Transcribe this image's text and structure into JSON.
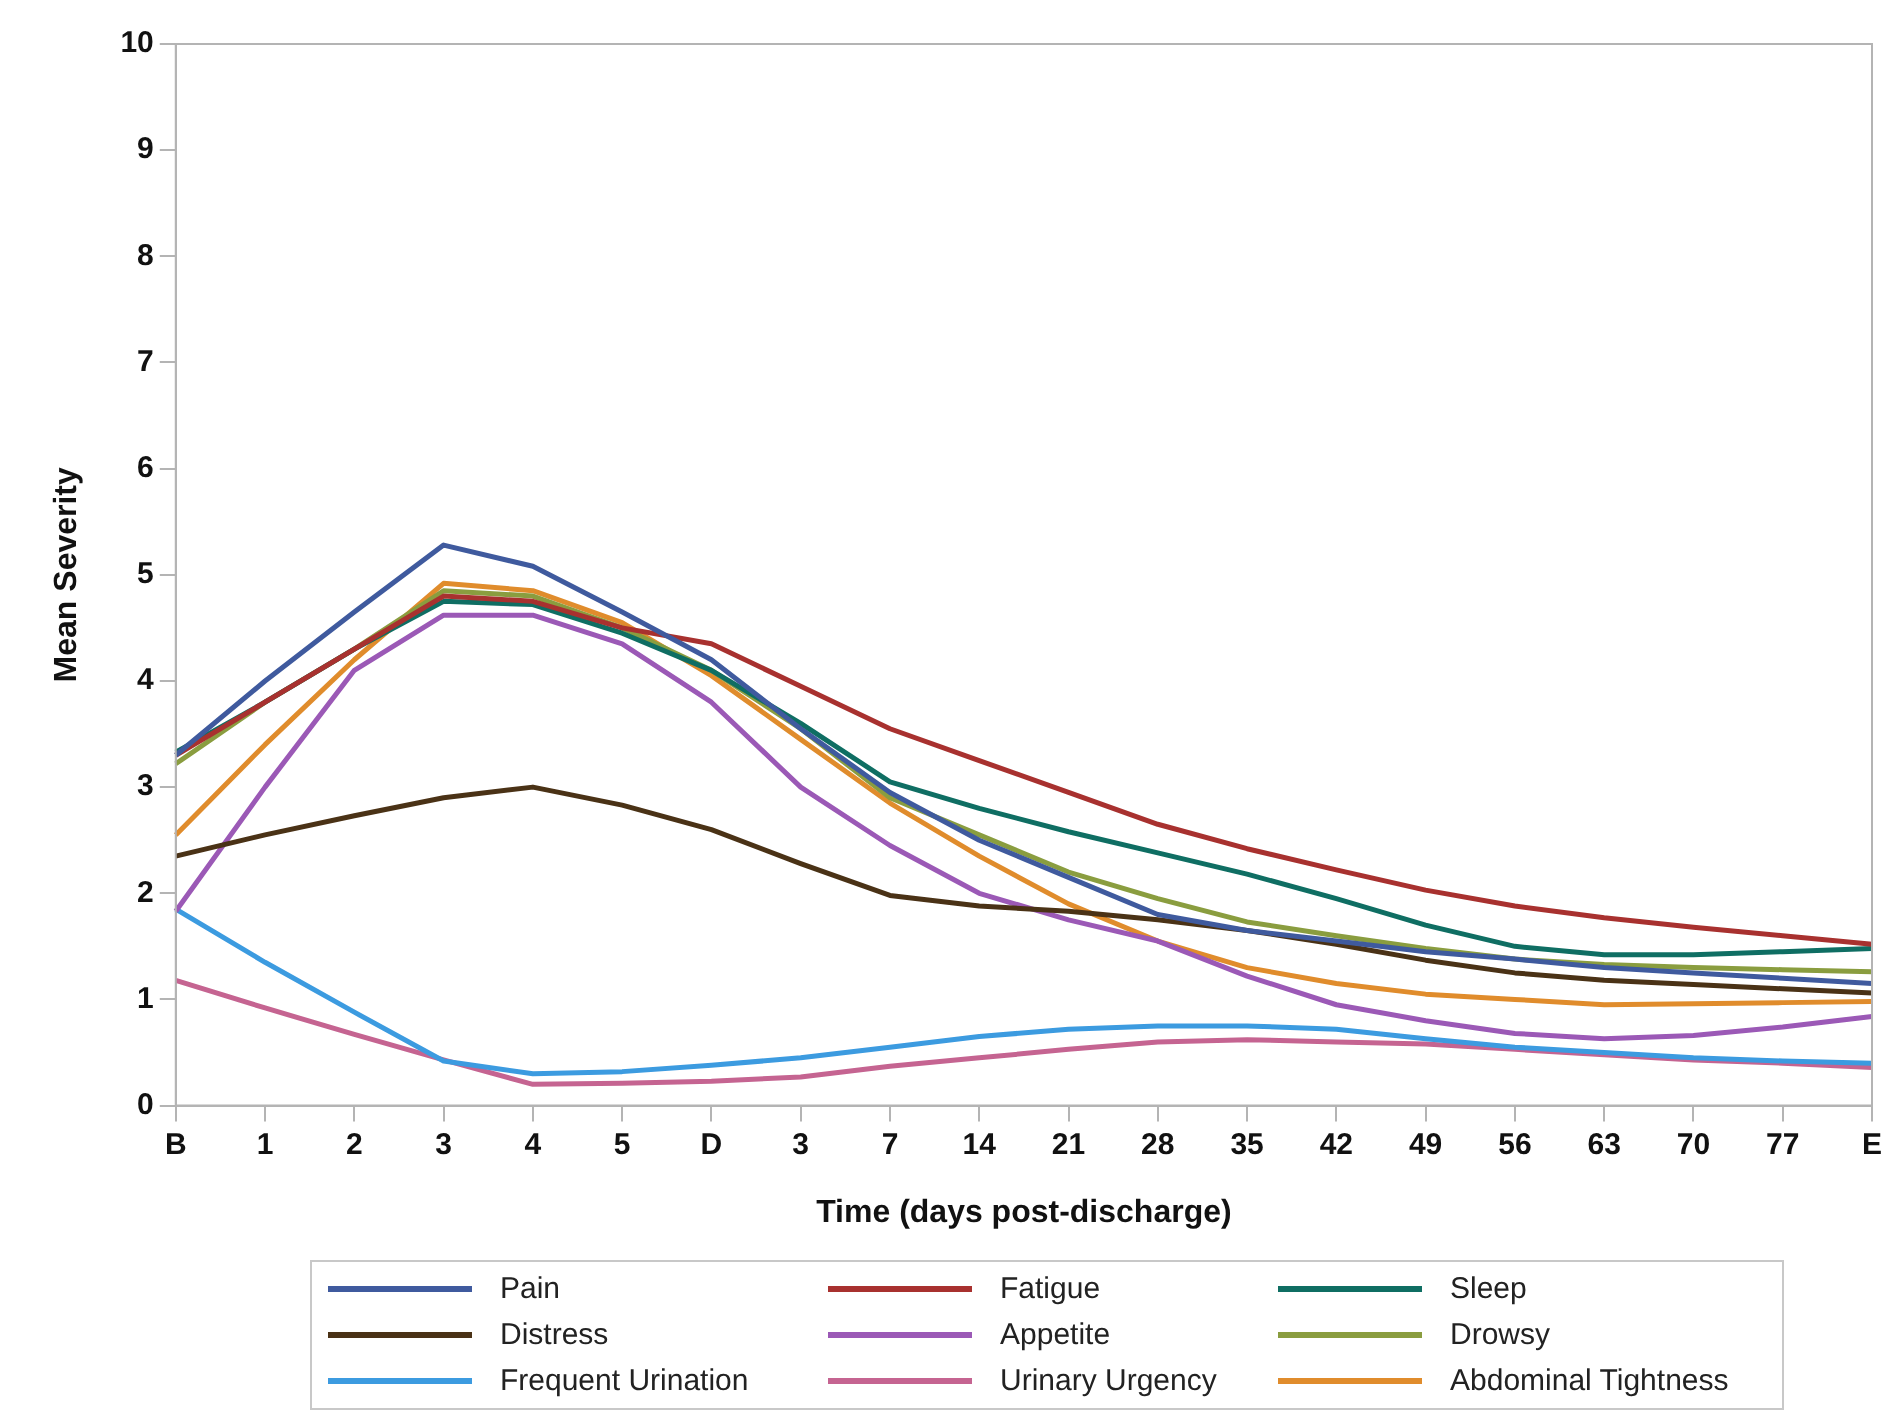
{
  "chart_data": {
    "type": "line",
    "xlabel": "Time (days post-discharge)",
    "ylabel": "Mean Severity",
    "categories": [
      "B",
      "1",
      "2",
      "3",
      "4",
      "5",
      "D",
      "3",
      "7",
      "14",
      "21",
      "28",
      "35",
      "42",
      "49",
      "56",
      "63",
      "70",
      "77",
      "E"
    ],
    "ylim": [
      0,
      10
    ],
    "yticks": [
      0,
      1,
      2,
      3,
      4,
      5,
      6,
      7,
      8,
      9,
      10
    ],
    "grid": false,
    "legend": "bottom",
    "marker": "none",
    "line_style": "solid",
    "series": [
      {
        "name": "Pain",
        "color": "#3f5a9e",
        "values": [
          3.3,
          4.0,
          4.65,
          5.28,
          5.08,
          4.65,
          4.2,
          3.55,
          2.95,
          2.5,
          2.15,
          1.8,
          1.65,
          1.55,
          1.45,
          1.38,
          1.3,
          1.25,
          1.2,
          1.15
        ]
      },
      {
        "name": "Fatigue",
        "color": "#a8312f",
        "values": [
          3.3,
          3.8,
          4.3,
          4.8,
          4.75,
          4.5,
          4.35,
          3.95,
          3.55,
          3.25,
          2.95,
          2.65,
          2.42,
          2.22,
          2.03,
          1.88,
          1.77,
          1.68,
          1.6,
          1.52
        ]
      },
      {
        "name": "Sleep",
        "color": "#0f6e63",
        "values": [
          3.33,
          3.8,
          4.3,
          4.75,
          4.72,
          4.45,
          4.1,
          3.6,
          3.05,
          2.8,
          2.58,
          2.38,
          2.18,
          1.95,
          1.7,
          1.5,
          1.42,
          1.42,
          1.45,
          1.48
        ]
      },
      {
        "name": "Distress",
        "color": "#4a3216",
        "values": [
          2.35,
          2.55,
          2.73,
          2.9,
          3.0,
          2.83,
          2.6,
          2.28,
          1.98,
          1.88,
          1.83,
          1.75,
          1.65,
          1.52,
          1.37,
          1.25,
          1.18,
          1.14,
          1.1,
          1.06
        ]
      },
      {
        "name": "Appetite",
        "color": "#9b59b6",
        "values": [
          1.83,
          3.0,
          4.1,
          4.62,
          4.62,
          4.35,
          3.8,
          3.0,
          2.45,
          2.0,
          1.75,
          1.55,
          1.22,
          0.95,
          0.8,
          0.68,
          0.63,
          0.66,
          0.74,
          0.84
        ]
      },
      {
        "name": "Drowsy",
        "color": "#8a9d3f",
        "values": [
          3.22,
          3.8,
          4.3,
          4.85,
          4.8,
          4.5,
          4.1,
          3.55,
          2.9,
          2.55,
          2.2,
          1.95,
          1.73,
          1.6,
          1.48,
          1.38,
          1.33,
          1.3,
          1.28,
          1.26
        ]
      },
      {
        "name": "Frequent Urination",
        "color": "#3c9be0",
        "values": [
          1.85,
          1.35,
          0.88,
          0.42,
          0.3,
          0.32,
          0.38,
          0.45,
          0.55,
          0.65,
          0.72,
          0.75,
          0.75,
          0.72,
          0.63,
          0.55,
          0.5,
          0.45,
          0.42,
          0.4
        ]
      },
      {
        "name": "Urinary Urgency",
        "color": "#c56491",
        "values": [
          1.18,
          0.92,
          0.67,
          0.43,
          0.2,
          0.21,
          0.23,
          0.27,
          0.37,
          0.45,
          0.53,
          0.6,
          0.62,
          0.6,
          0.58,
          0.53,
          0.48,
          0.43,
          0.4,
          0.36
        ]
      },
      {
        "name": "Abdominal Tightness",
        "color": "#e08c2c",
        "values": [
          2.55,
          3.4,
          4.2,
          4.92,
          4.85,
          4.55,
          4.05,
          3.45,
          2.85,
          2.35,
          1.9,
          1.55,
          1.3,
          1.15,
          1.05,
          1.0,
          0.95,
          0.96,
          0.97,
          0.98
        ]
      }
    ]
  }
}
